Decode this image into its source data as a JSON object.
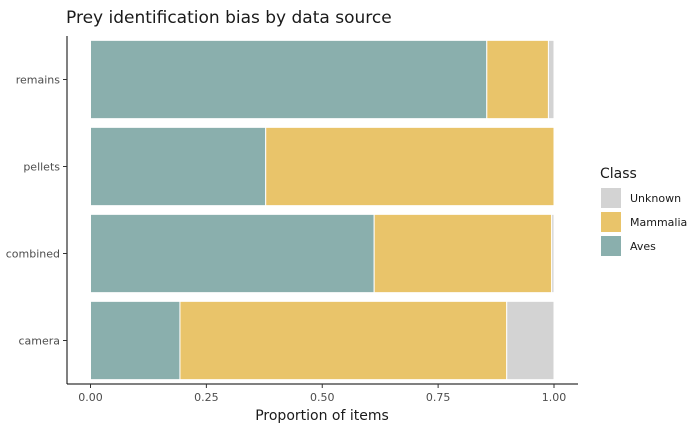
{
  "chart_data": {
    "type": "bar",
    "orientation": "horizontal",
    "stacked": true,
    "title": "Prey identification bias by data source",
    "xlabel": "Proportion of items",
    "ylabel": "",
    "xlim": [
      0,
      1
    ],
    "x_ticks": [
      "0.00",
      "0.25",
      "0.50",
      "0.75",
      "1.00"
    ],
    "categories": [
      "remains",
      "pellets",
      "combined",
      "camera"
    ],
    "series": [
      {
        "name": "Aves",
        "color": "#8aafad",
        "values": [
          0.855,
          0.378,
          0.612,
          0.193
        ]
      },
      {
        "name": "Mammalia",
        "color": "#e9c46a",
        "values": [
          0.133,
          0.622,
          0.383,
          0.705
        ]
      },
      {
        "name": "Unknown",
        "color": "#d3d3d3",
        "values": [
          0.012,
          0.0,
          0.005,
          0.102
        ]
      }
    ],
    "legend": {
      "title": "Class",
      "position": "right",
      "order": [
        "Unknown",
        "Mammalia",
        "Aves"
      ]
    },
    "grid": false
  }
}
